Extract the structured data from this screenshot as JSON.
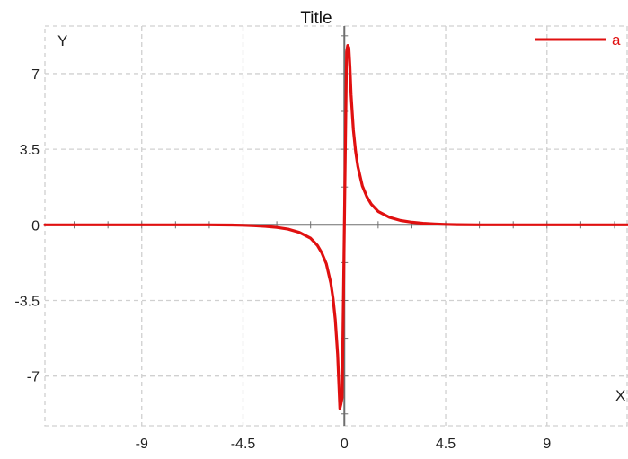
{
  "chart_data": {
    "type": "line",
    "title": "Title",
    "xlabel": "X",
    "ylabel": "Y",
    "xlim": [
      -13.3,
      12.6
    ],
    "ylim": [
      -9.3,
      9.2
    ],
    "x_ticks": [
      -9,
      -4.5,
      0,
      4.5,
      9
    ],
    "x_tick_labels": [
      "-9",
      "-4.5",
      "0",
      "4.5",
      "9"
    ],
    "y_ticks": [
      -7,
      -3.5,
      0,
      3.5,
      7
    ],
    "y_tick_labels": [
      "-7",
      "-3.5",
      "0",
      "3.5",
      "7"
    ],
    "grid": true,
    "legend_position": "top-right",
    "series": [
      {
        "name": "a",
        "color": "#e01010",
        "x": [
          -13.3,
          -6,
          -5,
          -4.5,
          -4,
          -3.5,
          -3,
          -2.5,
          -2,
          -1.5,
          -1.2,
          -1,
          -0.8,
          -0.6,
          -0.5,
          -0.4,
          -0.3,
          -0.25,
          -0.2,
          -0.15,
          -0.1,
          0,
          0.1,
          0.15,
          0.2,
          0.25,
          0.3,
          0.4,
          0.5,
          0.6,
          0.8,
          1,
          1.2,
          1.5,
          2,
          2.5,
          3,
          3.5,
          4,
          4.5,
          5,
          6,
          12.6
        ],
        "y": [
          0,
          0,
          -0.01,
          -0.02,
          -0.04,
          -0.07,
          -0.12,
          -0.2,
          -0.35,
          -0.62,
          -0.95,
          -1.3,
          -1.8,
          -2.7,
          -3.4,
          -4.4,
          -6.0,
          -7.2,
          -8.5,
          -8.3,
          -8.0,
          0,
          8.0,
          8.3,
          8.2,
          7.3,
          6.0,
          4.4,
          3.4,
          2.7,
          1.8,
          1.3,
          0.95,
          0.62,
          0.35,
          0.2,
          0.12,
          0.07,
          0.04,
          0.02,
          0.01,
          0,
          0
        ]
      }
    ]
  }
}
